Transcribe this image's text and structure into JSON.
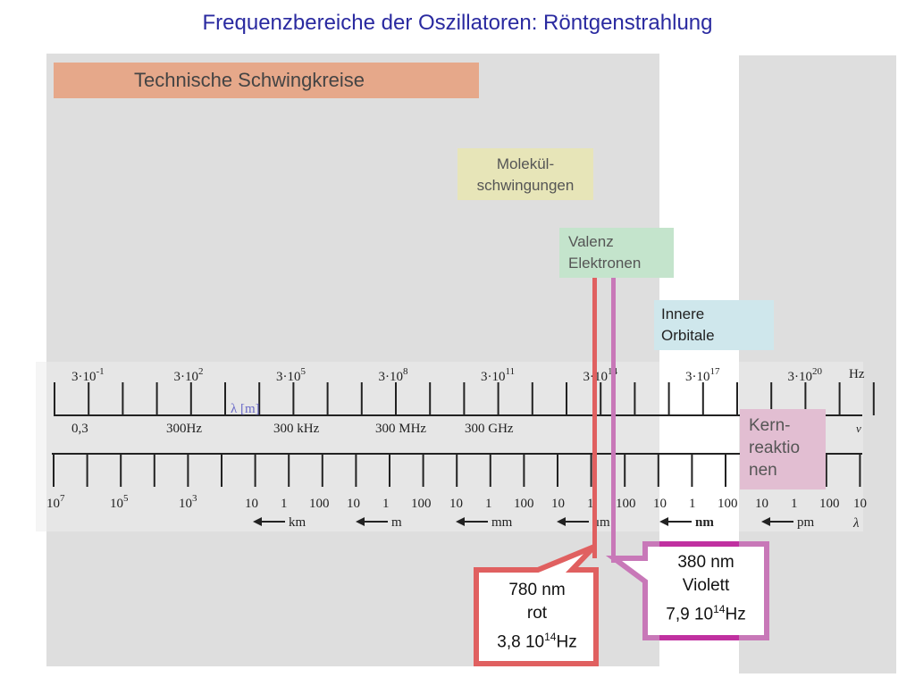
{
  "title": "Frequenzbereiche der Oszillatoren: Röntgenstrahlung",
  "boxes": {
    "tech": "Technische Schwingkreise",
    "mol_1": "Molekül-",
    "mol_2": "schwingungen",
    "val_1": "Valenz",
    "val_2": "Elektronen",
    "orb_1": "Innere",
    "orb_2": "Orbitale",
    "kern_1": "Kern-",
    "kern_2": "reaktio",
    "kern_3": "nen"
  },
  "scale": {
    "freq_base": "3·10",
    "freq_exps": [
      "-1",
      "2",
      "5",
      "8",
      "11",
      "14",
      "17",
      "20"
    ],
    "freq_unit": "Hz",
    "freq_symbol": "ν",
    "freq_names": [
      "0,3",
      "300Hz",
      "300 kHz",
      "300 MHz",
      "300 GHz"
    ],
    "lambda_axis_label": "λ [m]",
    "wl_exponent_labels": [
      "10",
      "10",
      "10"
    ],
    "wl_exps": [
      "7",
      "5",
      "3"
    ],
    "wl_groups": [
      [
        "10",
        "1",
        "100"
      ],
      [
        "10",
        "1",
        "100"
      ],
      [
        "10",
        "1",
        "100"
      ],
      [
        "10",
        "1",
        "100"
      ],
      [
        "10",
        "1",
        "100"
      ],
      [
        "10",
        "1",
        "100"
      ],
      [
        "10"
      ]
    ],
    "wl_units": [
      "km",
      "m",
      "mm",
      "μm",
      "nm",
      "pm"
    ],
    "wl_symbol": "λ"
  },
  "callouts": {
    "red": {
      "wavelength": "780 nm",
      "color_name": "rot",
      "freq_mantissa": "3,8 10",
      "freq_exp": "14",
      "freq_unit": "Hz",
      "stroke": "#e06060"
    },
    "violet": {
      "wavelength": "380 nm",
      "color_name": "Violett",
      "freq_mantissa": "7,9 10",
      "freq_exp": "14",
      "freq_unit": "Hz",
      "stroke": "#c878b8"
    }
  }
}
